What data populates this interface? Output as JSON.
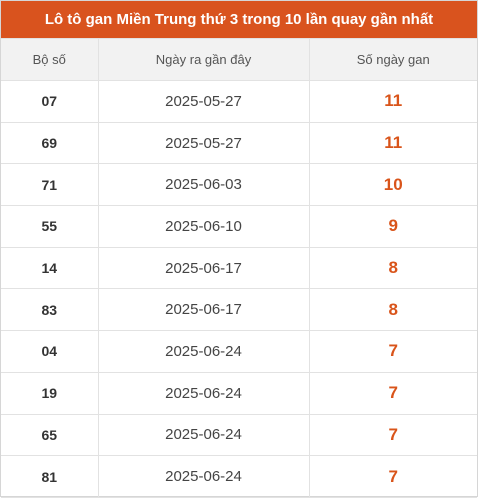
{
  "header": {
    "title": "Lô tô gan Miền Trung thứ 3 trong 10 lần quay gần nhất"
  },
  "table": {
    "columns": [
      "Bộ số",
      "Ngày ra gần đây",
      "Số ngày gan"
    ],
    "rows": [
      [
        "07",
        "2025-05-27",
        11
      ],
      [
        "69",
        "2025-05-27",
        11
      ],
      [
        "71",
        "2025-06-03",
        10
      ],
      [
        "55",
        "2025-06-10",
        9
      ],
      [
        "14",
        "2025-06-17",
        8
      ],
      [
        "83",
        "2025-06-17",
        8
      ],
      [
        "04",
        "2025-06-24",
        7
      ],
      [
        "19",
        "2025-06-24",
        7
      ],
      [
        "65",
        "2025-06-24",
        7
      ],
      [
        "81",
        "2025-06-24",
        7
      ]
    ]
  }
}
